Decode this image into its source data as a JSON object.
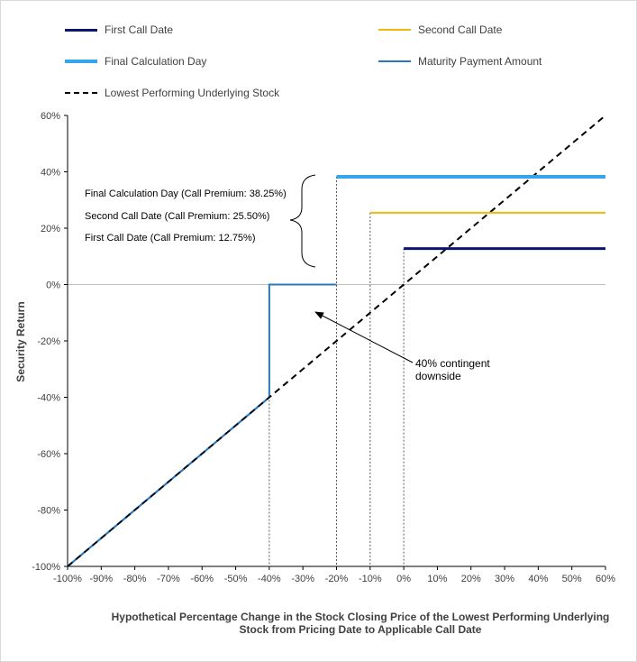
{
  "chart_data": {
    "type": "line",
    "xlabel": "Hypothetical Percentage Change in the Stock Closing Price of the Lowest Performing Underlying Stock from Pricing Date to Applicable Call Date",
    "ylabel": "Security Return",
    "xlim": [
      -100,
      60
    ],
    "ylim": [
      -100,
      60
    ],
    "x_ticks": [
      "-100%",
      "-90%",
      "-80%",
      "-70%",
      "-60%",
      "-50%",
      "-40%",
      "-30%",
      "-20%",
      "-10%",
      "0%",
      "10%",
      "20%",
      "30%",
      "40%",
      "50%",
      "60%"
    ],
    "y_ticks": [
      "60%",
      "40%",
      "20%",
      "0%",
      "-20%",
      "-40%",
      "-60%",
      "-80%",
      "-100%"
    ],
    "grid": false,
    "legend_position": "top",
    "series": [
      {
        "name": "First Call Date",
        "color": "#0b1570",
        "style": "solid",
        "points": [
          [
            0,
            12.75
          ],
          [
            60,
            12.75
          ]
        ]
      },
      {
        "name": "Second Call Date",
        "color": "#f2b70c",
        "style": "solid",
        "points": [
          [
            -10,
            25.5
          ],
          [
            60,
            25.5
          ]
        ]
      },
      {
        "name": "Final Calculation Day",
        "color": "#36a4ea",
        "style": "solid",
        "points": [
          [
            -20,
            38.25
          ],
          [
            60,
            38.25
          ]
        ]
      },
      {
        "name": "Maturity Payment Amount",
        "color": "#2a77c0",
        "style": "solid",
        "points": [
          [
            -100,
            -100
          ],
          [
            -40,
            -40
          ],
          [
            -40,
            0
          ],
          [
            -20,
            0
          ]
        ]
      },
      {
        "name": "Lowest Performing Underlying Stock",
        "color": "#000000",
        "style": "dashed",
        "points": [
          [
            -100,
            -100
          ],
          [
            60,
            60
          ]
        ]
      }
    ],
    "reference_lines": [
      -40,
      -20,
      -10,
      0
    ],
    "annotations": {
      "premiums": [
        "Final Calculation Day (Call Premium: 38.25%)",
        "Second Call Date (Call Premium: 25.50%)",
        "First Call Date (Call Premium: 12.75%)"
      ],
      "downside_line1": "40% contingent",
      "downside_line2": "downside"
    }
  }
}
